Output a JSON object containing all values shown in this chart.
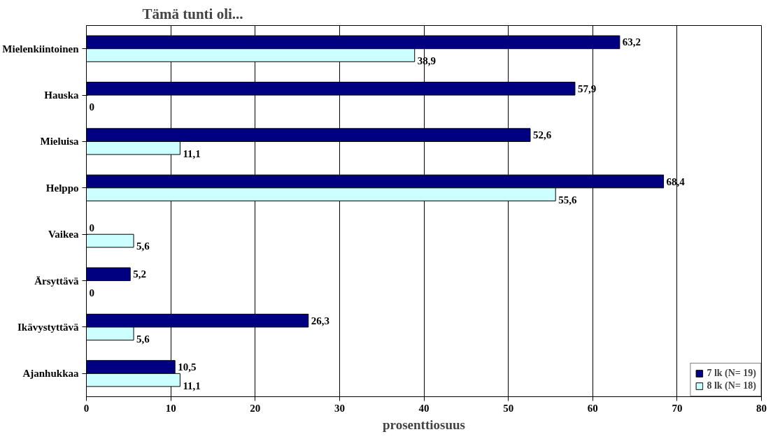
{
  "chart_data": {
    "type": "bar",
    "orientation": "horizontal",
    "title": "Tämä tunti oli...",
    "xlabel": "prosenttiosuus",
    "categories": [
      "Mielenkiintoinen",
      "Hauska",
      "Mieluisa",
      "Helppo",
      "Vaikea",
      "Ärsyttävä",
      "Ikävystyttävä",
      "Ajanhukkaa"
    ],
    "series": [
      {
        "name": "7 lk (N= 19)",
        "color": "#000080",
        "values": [
          63.2,
          57.9,
          52.6,
          68.4,
          0,
          5.2,
          26.3,
          10.5
        ],
        "value_labels": [
          "63,2",
          "57,9",
          "52,6",
          "68,4",
          "0",
          "5,2",
          "26,3",
          "10,5"
        ]
      },
      {
        "name": "8 lk (N= 18)",
        "color": "#ccffff",
        "values": [
          38.9,
          0,
          11.1,
          55.6,
          5.6,
          0,
          5.6,
          11.1
        ],
        "value_labels": [
          "38,9",
          "0",
          "11,1",
          "55,6",
          "5,6",
          "0",
          "5,6",
          "11,1"
        ]
      }
    ],
    "xlim": [
      0,
      80
    ],
    "xticks": [
      0,
      10,
      20,
      30,
      40,
      50,
      60,
      70,
      80
    ],
    "grid": "x",
    "legend": "bottom right"
  }
}
